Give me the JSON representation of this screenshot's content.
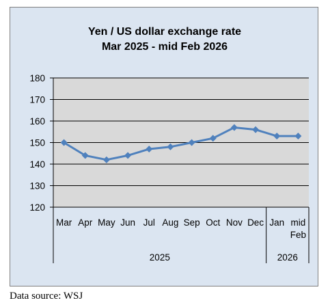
{
  "chart_data": {
    "type": "line",
    "title": [
      "Yen / US dollar exchange rate",
      "Mar 2025  - mid Feb 2026"
    ],
    "categories": [
      "Mar",
      "Apr",
      "May",
      "Jun",
      "Jul",
      "Aug",
      "Sep",
      "Oct",
      "Nov",
      "Dec",
      "Jan",
      "mid Feb"
    ],
    "category_label_lines": [
      [
        "Mar"
      ],
      [
        "Apr"
      ],
      [
        "May"
      ],
      [
        "Jun"
      ],
      [
        "Jul"
      ],
      [
        "Aug"
      ],
      [
        "Sep"
      ],
      [
        "Oct"
      ],
      [
        "Nov"
      ],
      [
        "Dec"
      ],
      [
        "Jan"
      ],
      [
        "mid",
        "Feb"
      ]
    ],
    "year_groups": [
      {
        "label": "2025",
        "count": 10
      },
      {
        "label": "2026",
        "count": 2
      }
    ],
    "series": [
      {
        "values": [
          150,
          144,
          142,
          144,
          147,
          148,
          150,
          152,
          157,
          156,
          153,
          153
        ]
      }
    ],
    "ylim": [
      120,
      180
    ],
    "yticks": [
      120,
      130,
      140,
      150,
      160,
      170,
      180
    ],
    "xlabel": "",
    "ylabel": "",
    "grid": true,
    "legend": "none",
    "colors": {
      "line": "#4f81bd",
      "plot_bg": "#d9d9d9",
      "frame_bg": "#dbe5f1",
      "grid": "#000000"
    }
  },
  "source_note": "Data source: WSJ"
}
